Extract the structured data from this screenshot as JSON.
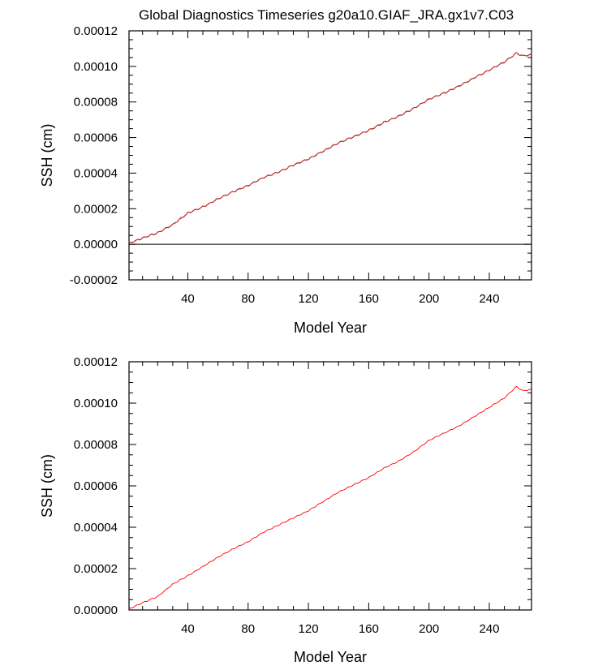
{
  "title": "Global Diagnostics Timeseries g20a10.GIAF_JRA.gx1v7.C03",
  "chart_data": [
    {
      "type": "line",
      "xlabel": "Model Year",
      "ylabel": "SSH (cm)",
      "xlim": [
        1,
        268
      ],
      "ylim": [
        -2e-05,
        0.00012
      ],
      "x_ticks": [
        40,
        80,
        120,
        160,
        200,
        240
      ],
      "x_tick_labels": [
        "40",
        "80",
        "120",
        "160",
        "200",
        "240"
      ],
      "y_ticks": [
        -2e-05,
        0,
        2e-05,
        4e-05,
        6e-05,
        8e-05,
        0.0001,
        0.00012
      ],
      "y_tick_labels": [
        "-0.00002",
        "0.00000",
        "0.00002",
        "0.00004",
        "0.00006",
        "0.00008",
        "0.00010",
        "0.00012"
      ],
      "reference_line_y": 0,
      "grid": false,
      "series": [
        {
          "color": "#b22222",
          "x": [
            1,
            10,
            20,
            30,
            40,
            50,
            60,
            70,
            80,
            90,
            100,
            110,
            120,
            130,
            140,
            150,
            160,
            170,
            180,
            190,
            200,
            210,
            220,
            230,
            240,
            250,
            258,
            262,
            268
          ],
          "y": [
            5e-07,
            3.5e-06,
            6.5e-06,
            1.1e-05,
            1.75e-05,
            2.1e-05,
            2.55e-05,
            2.95e-05,
            3.3e-05,
            3.75e-05,
            4.05e-05,
            4.45e-05,
            4.8e-05,
            5.25e-05,
            5.7e-05,
            6.05e-05,
            6.4e-05,
            6.85e-05,
            7.2e-05,
            7.65e-05,
            8.15e-05,
            8.5e-05,
            8.9e-05,
            9.35e-05,
            9.8e-05,
            0.0001025,
            0.0001075,
            0.000106,
            0.0001065
          ]
        }
      ]
    },
    {
      "type": "line",
      "xlabel": "Model Year",
      "ylabel": "SSH (cm)",
      "xlim": [
        1,
        268
      ],
      "ylim": [
        0,
        0.00012
      ],
      "x_ticks": [
        40,
        80,
        120,
        160,
        200,
        240
      ],
      "x_tick_labels": [
        "40",
        "80",
        "120",
        "160",
        "200",
        "240"
      ],
      "y_ticks": [
        0,
        2e-05,
        4e-05,
        6e-05,
        8e-05,
        0.0001,
        0.00012
      ],
      "y_tick_labels": [
        "0.00000",
        "0.00002",
        "0.00004",
        "0.00006",
        "0.00008",
        "0.00010",
        "0.00012"
      ],
      "grid": false,
      "series": [
        {
          "color": "#ff0000",
          "x": [
            1,
            10,
            20,
            30,
            40,
            50,
            60,
            70,
            80,
            90,
            100,
            110,
            120,
            130,
            140,
            150,
            160,
            170,
            180,
            190,
            200,
            210,
            220,
            230,
            240,
            250,
            258,
            262,
            268
          ],
          "y": [
            5e-07,
            3.5e-06,
            6.5e-06,
            1.25e-05,
            1.65e-05,
            2.1e-05,
            2.55e-05,
            2.95e-05,
            3.3e-05,
            3.75e-05,
            4.1e-05,
            4.45e-05,
            4.8e-05,
            5.25e-05,
            5.7e-05,
            6.05e-05,
            6.4e-05,
            6.85e-05,
            7.2e-05,
            7.65e-05,
            8.2e-05,
            8.55e-05,
            8.9e-05,
            9.35e-05,
            9.8e-05,
            0.0001025,
            0.000108,
            0.000106,
            0.0001065
          ]
        }
      ]
    }
  ]
}
